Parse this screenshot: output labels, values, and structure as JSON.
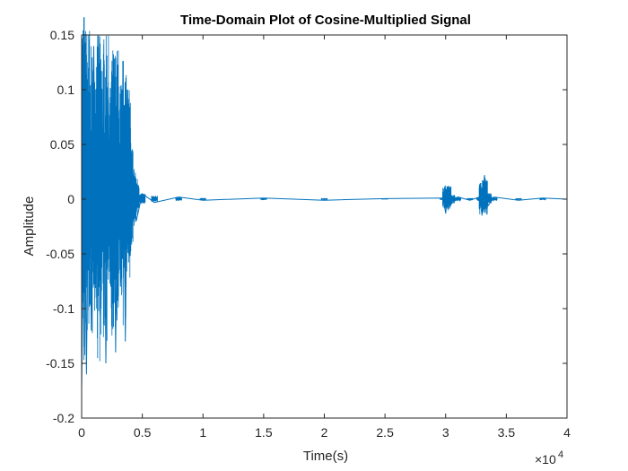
{
  "chart_data": {
    "type": "line",
    "title": "Time-Domain Plot of Cosine-Multiplied Signal",
    "xlabel": "Time(s)",
    "ylabel": "Amplitude",
    "x_exponent_label": "×10",
    "x_exponent_power": "4",
    "xlim": [
      0,
      40000
    ],
    "ylim": [
      -0.2,
      0.15
    ],
    "x_ticks": [
      0,
      5000,
      10000,
      15000,
      20000,
      25000,
      30000,
      35000,
      40000
    ],
    "x_tick_labels": [
      "0",
      "0.5",
      "1",
      "1.5",
      "2",
      "2.5",
      "3",
      "3.5",
      "4"
    ],
    "y_ticks": [
      -0.2,
      -0.15,
      -0.1,
      -0.05,
      0,
      0.05,
      0.1,
      0.15
    ],
    "y_tick_labels": [
      "-0.2",
      "-0.15",
      "-0.1",
      "-0.05",
      "0",
      "0.05",
      "0.1",
      "0.15"
    ],
    "grid": false,
    "line_color": "#0072BD",
    "series": [
      {
        "x": [
          0,
          200,
          400,
          600,
          800,
          1000,
          1200,
          1400,
          1600,
          1800,
          2000,
          2200,
          2400,
          2600,
          2800,
          3000,
          3200,
          3400,
          3600,
          3800,
          4000,
          4200,
          4500,
          5000,
          6000,
          8000,
          10000,
          15000,
          20000,
          25000,
          29800,
          30000,
          30200,
          30500,
          31000,
          32000,
          32800,
          33000,
          33200,
          33500,
          34000,
          36000,
          38000,
          40000
        ],
        "y": [
          -0.175,
          0.04,
          -0.16,
          0.08,
          -0.12,
          0.14,
          -0.09,
          0.15,
          -0.1,
          0.12,
          -0.15,
          0.09,
          -0.08,
          0.13,
          -0.14,
          0.1,
          -0.08,
          0.11,
          -0.13,
          0.1,
          -0.05,
          0.03,
          -0.02,
          0.005,
          -0.003,
          0.002,
          -0.001,
          0.001,
          -0.001,
          0.0005,
          0.001,
          -0.013,
          0.012,
          -0.004,
          0.002,
          -0.001,
          0.002,
          -0.015,
          0.022,
          -0.006,
          0.002,
          -0.001,
          0.001,
          0.0
        ]
      }
    ]
  }
}
